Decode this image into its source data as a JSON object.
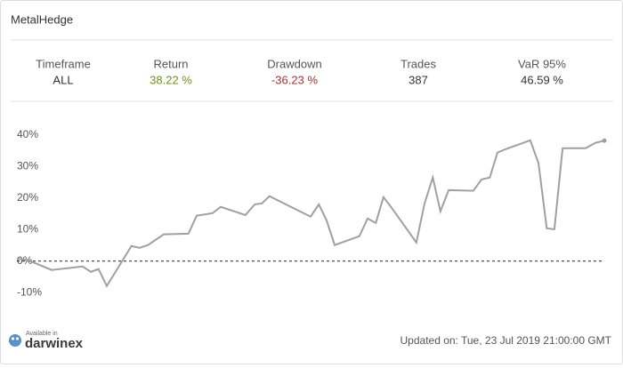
{
  "header": {
    "title": "MetalHedge"
  },
  "stats": [
    {
      "label": "Timeframe",
      "value": "ALL",
      "color": "#333333"
    },
    {
      "label": "Return",
      "value": "38.22 %",
      "color": "#6e8f1f"
    },
    {
      "label": "Drawdown",
      "value": "-36.23 %",
      "color": "#a83232"
    },
    {
      "label": "Trades",
      "value": "387",
      "color": "#333333"
    },
    {
      "label": "VaR 95%",
      "value": "46.59 %",
      "color": "#333333"
    }
  ],
  "chart_data": {
    "type": "line",
    "x": [
      0,
      1.8,
      3.3,
      5.9,
      11.2,
      12.6,
      13.9,
      15.3,
      19.5,
      20.9,
      22.3,
      25.0,
      29.2,
      30.6,
      33.3,
      34.7,
      38.9,
      40.5,
      41.7,
      43.0,
      50.0,
      51.4,
      52.7,
      54.1,
      58.3,
      59.7,
      61.1,
      62.4,
      63.8,
      68.0,
      69.4,
      70.8,
      72.1,
      73.5,
      77.7,
      79.1,
      80.5,
      81.8,
      83.2,
      87.4,
      88.8,
      90.2,
      91.5,
      92.9,
      96.8,
      98.5,
      100
    ],
    "values": [
      0.8,
      0.3,
      -0.8,
      -2.8,
      -1.7,
      -3.4,
      -2.5,
      -7.9,
      4.8,
      4.2,
      5.1,
      8.5,
      8.7,
      14.4,
      15.2,
      17.2,
      14.6,
      18.0,
      18.3,
      20.6,
      14.1,
      18.0,
      13.0,
      5.1,
      7.9,
      13.5,
      12.1,
      20.3,
      16.9,
      5.9,
      18.3,
      26.5,
      15.8,
      22.5,
      22.3,
      25.9,
      26.5,
      34.4,
      35.5,
      38.3,
      31.0,
      10.4,
      10.1,
      35.8,
      35.8,
      37.5,
      38.2
    ],
    "color": "#a0a0a0",
    "xlim": [
      0,
      100
    ],
    "ylim": [
      -15,
      47
    ],
    "yticks": [
      {
        "value": 40,
        "label": "40%"
      },
      {
        "value": 30,
        "label": "30%"
      },
      {
        "value": 20,
        "label": "20%"
      },
      {
        "value": 10,
        "label": "10%"
      },
      {
        "value": 0,
        "label": "0%"
      },
      {
        "value": -10,
        "label": "-10%"
      }
    ],
    "zero_line": true,
    "grid": false
  },
  "footer": {
    "available": "Available in",
    "brand": "darwinex",
    "updated": "Updated on: Tue, 23 Jul 2019 21:00:00 GMT"
  }
}
